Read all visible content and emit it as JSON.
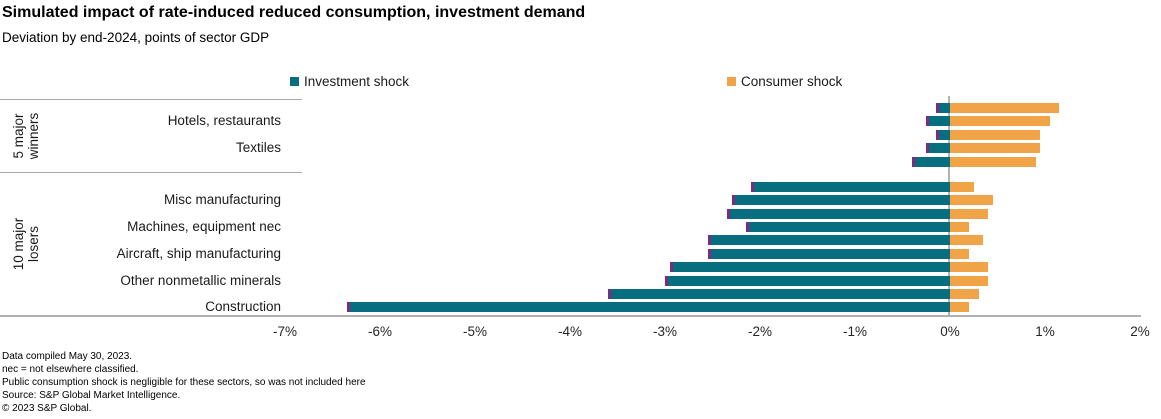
{
  "header": {
    "title": "Simulated impact of rate-induced reduced consumption, investment demand",
    "subtitle": "Deviation by end-2024, points of sector GDP"
  },
  "legend": {
    "items": [
      {
        "label": "Investment shock",
        "color": "#076e80"
      },
      {
        "label": "Consumer shock",
        "color": "#f0a347"
      }
    ]
  },
  "chart_data": {
    "type": "bar",
    "orientation": "horizontal",
    "title": "Simulated impact of rate-induced reduced consumption, investment demand",
    "subtitle": "Deviation by end-2024, points of sector GDP",
    "unit": "% of sector GDP",
    "xlim": [
      -7,
      2
    ],
    "x_ticks": [
      "-7%",
      "-6%",
      "-5%",
      "-4%",
      "-3%",
      "-2%",
      "-1%",
      "0%",
      "1%",
      "2%"
    ],
    "grid": false,
    "legend_position": "top",
    "series": [
      {
        "name": "Investment shock",
        "color": "#076e80"
      },
      {
        "name": "Consumer shock",
        "color": "#f0a347"
      }
    ],
    "bar_end_cap_color": "#7d2a80",
    "groups": [
      {
        "label": "5 major winners",
        "rows": [
          {
            "label": "",
            "investment_shock": -0.15,
            "consumer_shock": 1.15
          },
          {
            "label": "Hotels, restaurants",
            "investment_shock": -0.25,
            "consumer_shock": 1.05
          },
          {
            "label": "",
            "investment_shock": -0.15,
            "consumer_shock": 0.95
          },
          {
            "label": "Textiles",
            "investment_shock": -0.25,
            "consumer_shock": 0.95
          },
          {
            "label": "",
            "investment_shock": -0.4,
            "consumer_shock": 0.9
          }
        ]
      },
      {
        "label": "10 major losers",
        "rows": [
          {
            "label": "",
            "investment_shock": -2.1,
            "consumer_shock": 0.25
          },
          {
            "label": "Misc manufacturing",
            "investment_shock": -2.3,
            "consumer_shock": 0.45
          },
          {
            "label": "",
            "investment_shock": -2.35,
            "consumer_shock": 0.4
          },
          {
            "label": "Machines, equipment nec",
            "investment_shock": -2.15,
            "consumer_shock": 0.2
          },
          {
            "label": "",
            "investment_shock": -2.55,
            "consumer_shock": 0.35
          },
          {
            "label": "Aircraft, ship manufacturing",
            "investment_shock": -2.55,
            "consumer_shock": 0.2
          },
          {
            "label": "",
            "investment_shock": -2.95,
            "consumer_shock": 0.4
          },
          {
            "label": "Other nonmetallic minerals",
            "investment_shock": -3.0,
            "consumer_shock": 0.4
          },
          {
            "label": "",
            "investment_shock": -3.6,
            "consumer_shock": 0.3
          },
          {
            "label": "Construction",
            "investment_shock": -6.35,
            "consumer_shock": 0.2
          }
        ]
      }
    ]
  },
  "footnotes": [
    "Data compiled May 30, 2023.",
    "nec = not elsewhere classified.",
    "Public consumption shock is negligible for these sectors, so was not included here",
    "Source: S&P Global Market Intelligence.",
    "© 2023 S&P Global."
  ]
}
